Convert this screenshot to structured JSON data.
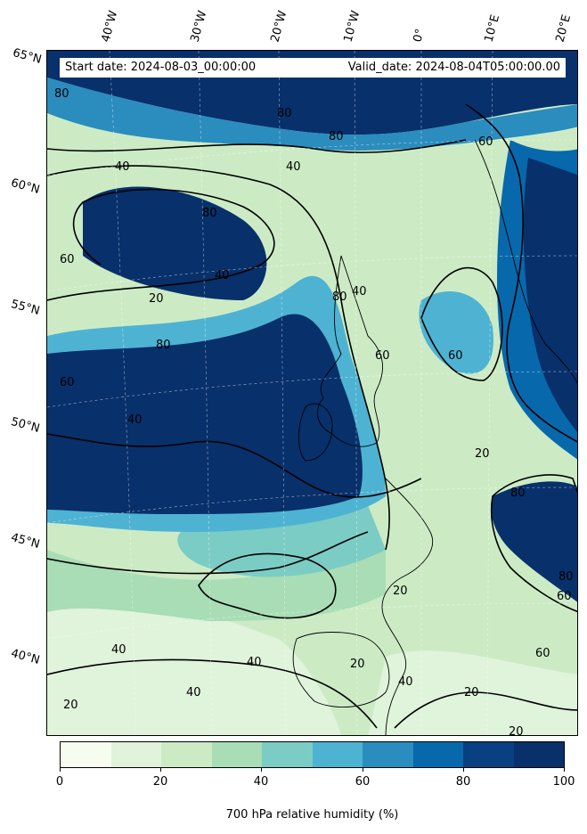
{
  "info": {
    "start_date": "Start date: 2024-08-03_00:00:00",
    "valid_date": "Valid_date: 2024-08-04T05:00:00.00"
  },
  "longitude_labels": [
    "40°W",
    "30°W",
    "20°W",
    "10°W",
    "0°",
    "10°E",
    "20°E"
  ],
  "latitude_labels": [
    "65°N",
    "60°N",
    "55°N",
    "50°N",
    "45°N",
    "40°N"
  ],
  "contour_labels": [
    "80",
    "80",
    "60",
    "80",
    "40",
    "40",
    "80",
    "60",
    "20",
    "40",
    "80",
    "60",
    "80",
    "40",
    "60",
    "20",
    "40",
    "20",
    "60",
    "20",
    "40",
    "40",
    "20",
    "40",
    "20",
    "20",
    "40",
    "60",
    "80",
    "60",
    "80"
  ],
  "colorbar": {
    "label": "700 hPa relative humidity (%)",
    "tick_labels": [
      "0",
      "20",
      "40",
      "60",
      "80",
      "100"
    ],
    "colors": [
      "#f7fcf0",
      "#e0f3db",
      "#ccebc5",
      "#a8ddb5",
      "#7bccc4",
      "#4eb3d3",
      "#2b8cbe",
      "#0868ac",
      "#084081",
      "#08306b"
    ]
  }
}
